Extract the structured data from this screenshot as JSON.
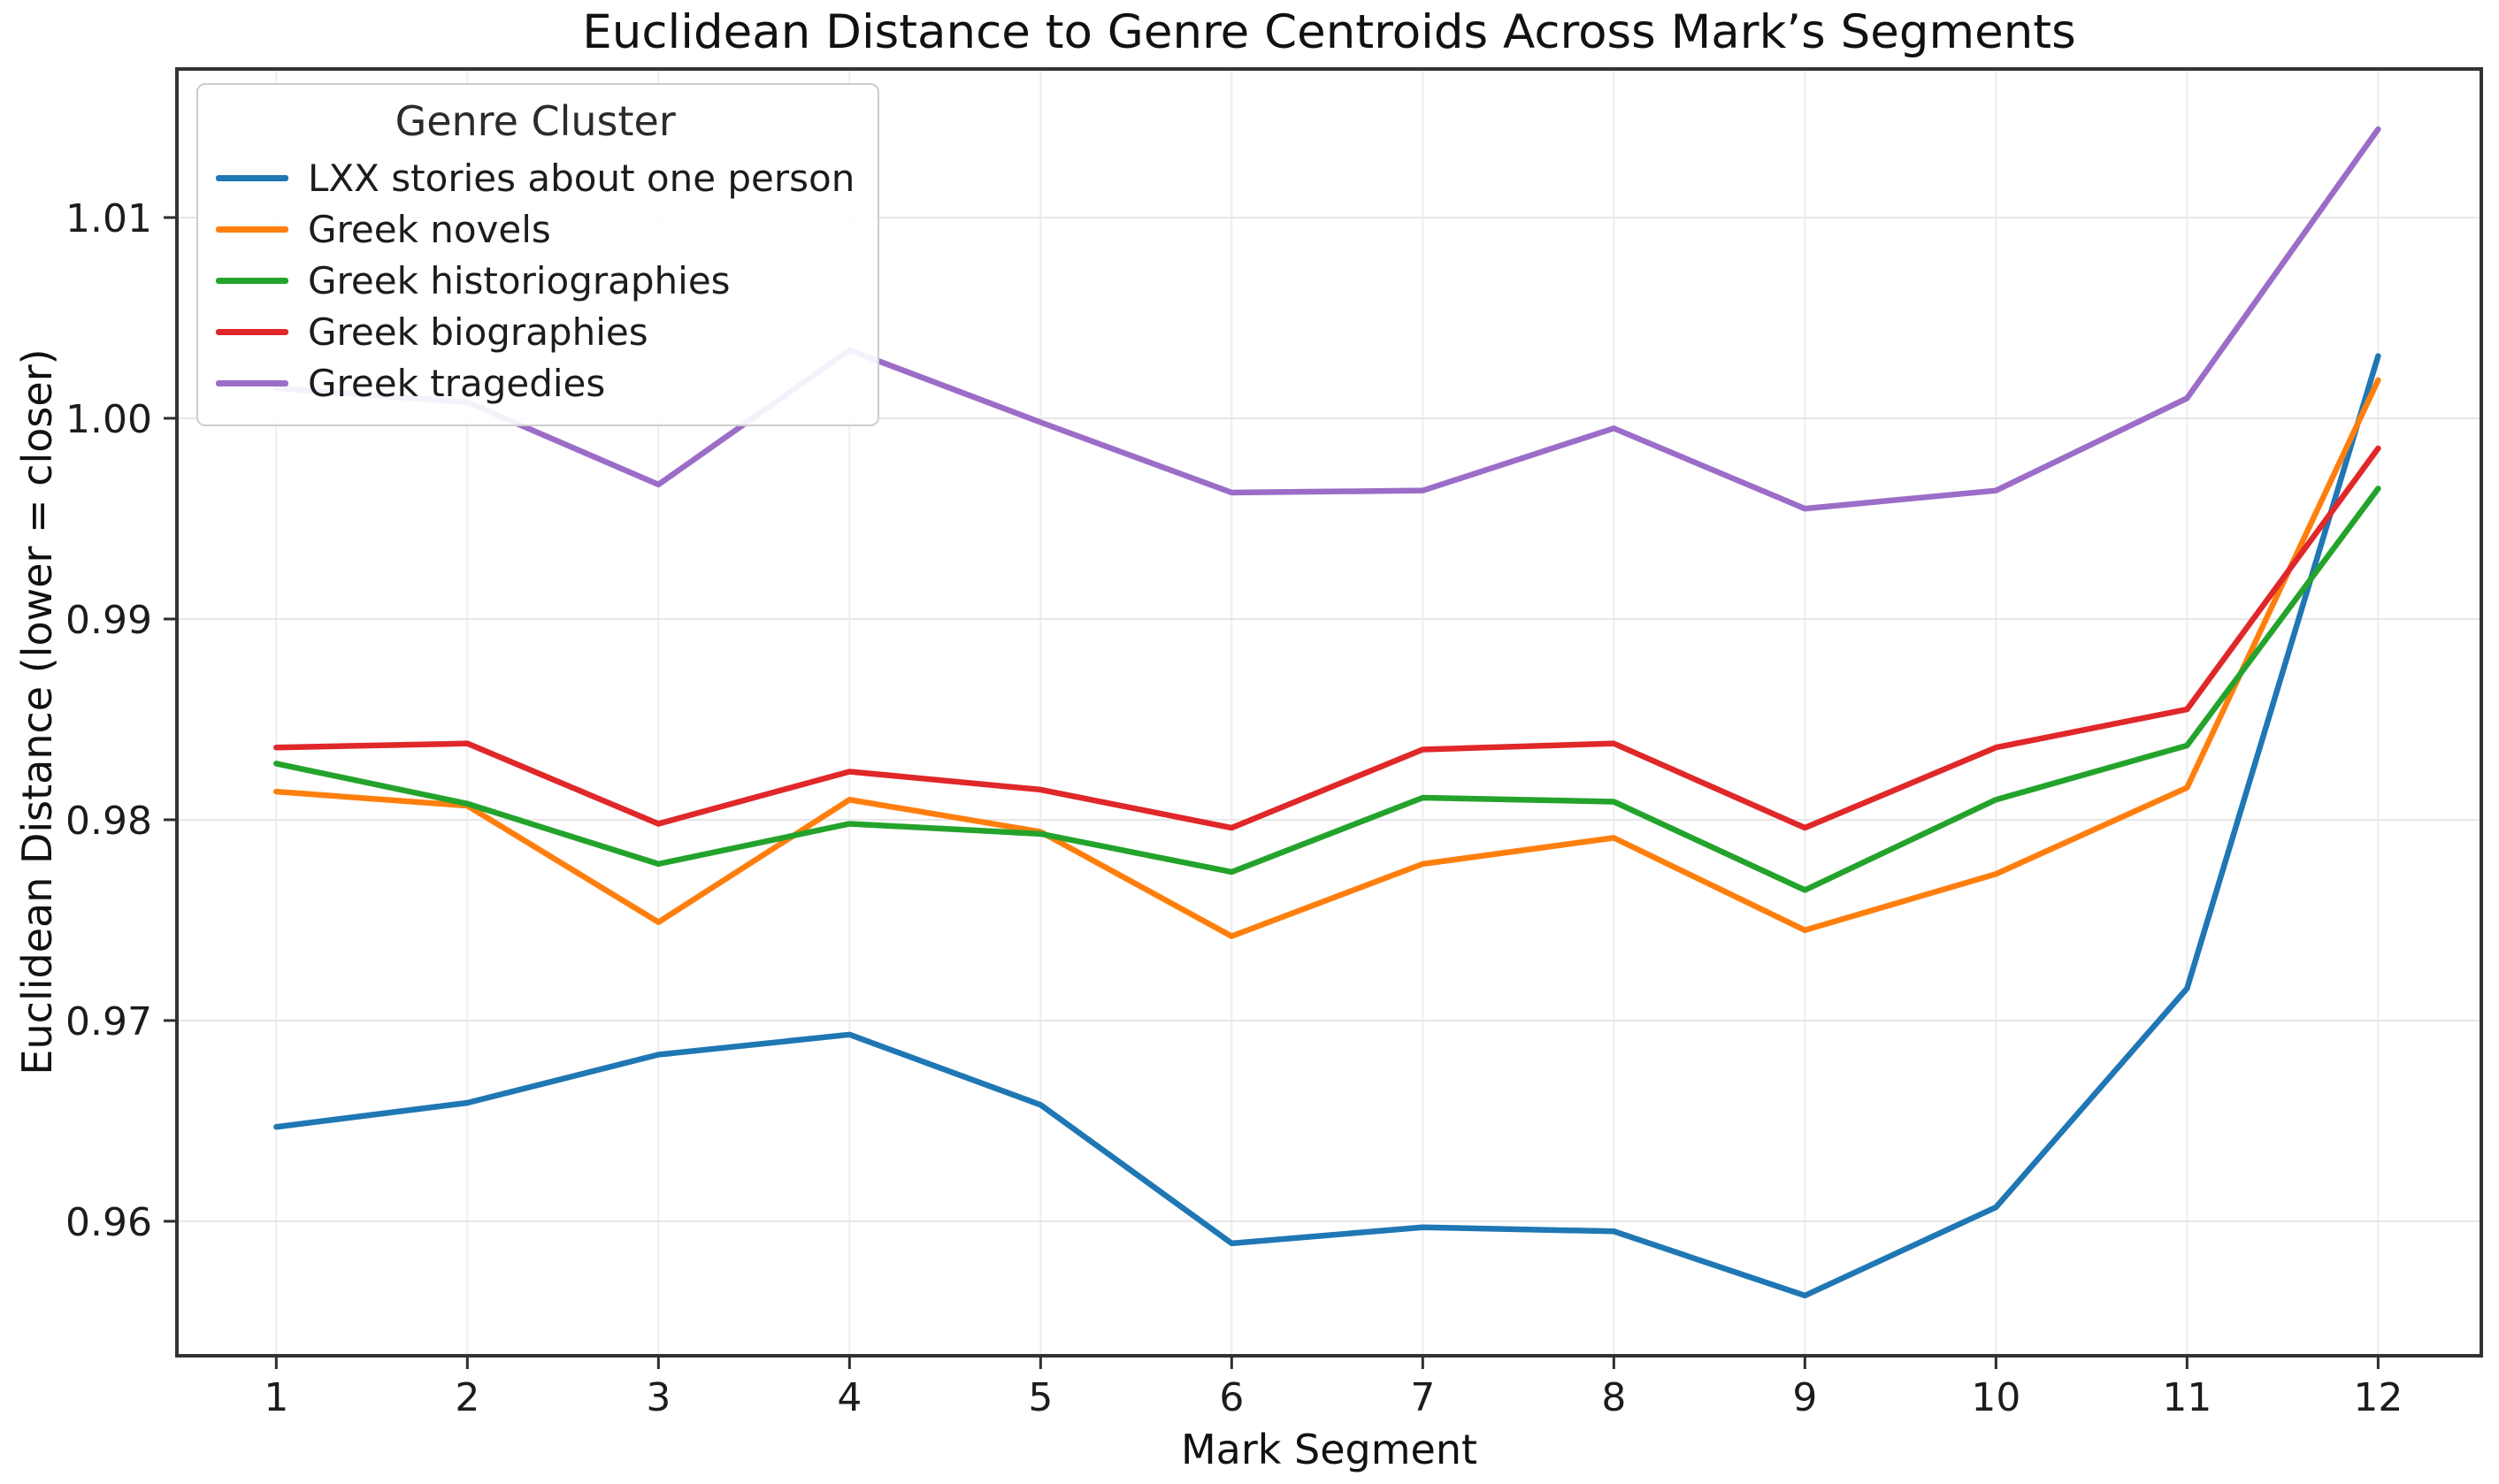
{
  "figure": {
    "title": "Euclidean Distance to Genre Centroids Across Mark’s Segments"
  },
  "chart_data": {
    "type": "line",
    "title": "Euclidean Distance to Genre Centroids Across Mark’s Segments",
    "xlabel": "Mark Segment",
    "ylabel": "Euclidean Distance (lower = closer)",
    "x": [
      1,
      2,
      3,
      4,
      5,
      6,
      7,
      8,
      9,
      10,
      11,
      12
    ],
    "x_tick_labels": [
      "1",
      "2",
      "3",
      "4",
      "5",
      "6",
      "7",
      "8",
      "9",
      "10",
      "11",
      "12"
    ],
    "y_ticks": [
      0.96,
      0.97,
      0.98,
      0.99,
      1.0,
      1.01
    ],
    "xlim": [
      0.48,
      12.54
    ],
    "ylim": [
      0.9533,
      1.0174
    ],
    "grid": true,
    "legend": {
      "title": "Genre Cluster",
      "position": "upper left"
    },
    "series": [
      {
        "name": "LXX stories about one person",
        "color": "#1f77b4",
        "values": [
          0.9647,
          0.9659,
          0.9683,
          0.9693,
          0.9658,
          0.9589,
          0.9597,
          0.9595,
          0.9563,
          0.9607,
          0.9716,
          1.0031
        ]
      },
      {
        "name": "Greek novels",
        "color": "#ff7f0e",
        "values": [
          0.9814,
          0.9807,
          0.9749,
          0.981,
          0.9794,
          0.9742,
          0.9778,
          0.9791,
          0.9745,
          0.9773,
          0.9816,
          1.0019
        ]
      },
      {
        "name": "Greek historiographies",
        "color": "#24a32c",
        "values": [
          0.9828,
          0.9808,
          0.9778,
          0.9798,
          0.9793,
          0.9774,
          0.9811,
          0.9809,
          0.9765,
          0.981,
          0.9837,
          0.9965
        ]
      },
      {
        "name": "Greek biographies",
        "color": "#e02729",
        "values": [
          0.9836,
          0.9838,
          0.9798,
          0.9824,
          0.9815,
          0.9796,
          0.9835,
          0.9838,
          0.9796,
          0.9836,
          0.9855,
          0.9985
        ]
      },
      {
        "name": "Greek tragedies",
        "color": "#9c6dc8",
        "values": [
          1.0015,
          1.0008,
          0.9967,
          1.0034,
          0.9998,
          0.9963,
          0.9964,
          0.9995,
          0.9955,
          0.9964,
          1.001,
          1.0144
        ]
      }
    ]
  },
  "style": {
    "grid_color_h": "#e6e6e6",
    "grid_color_v": "#ededed",
    "spine_color": "#333333",
    "tick_color": "#2e2e2e",
    "line_width": 6.5
  }
}
